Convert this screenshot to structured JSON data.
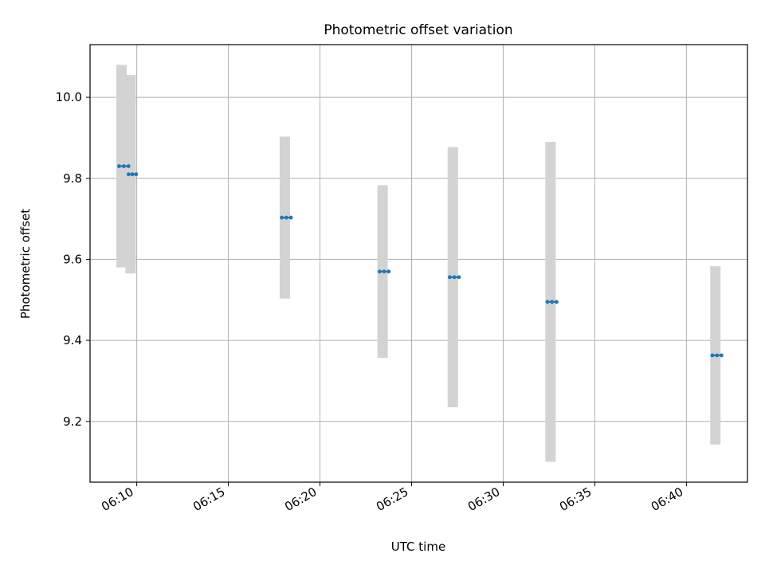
{
  "chart_data": {
    "type": "scatter",
    "title": "Photometric offset variation",
    "xlabel": "UTC time",
    "ylabel": "Photometric offset",
    "x_ticks": [
      "06:10",
      "06:15",
      "06:20",
      "06:25",
      "06:30",
      "06:35",
      "06:40"
    ],
    "y_ticks": [
      "9.2",
      "9.4",
      "9.6",
      "9.8",
      "10.0"
    ],
    "xlim": [
      "06:07:27",
      "06:43:20"
    ],
    "ylim": [
      9.05,
      10.13
    ],
    "grid": true,
    "colors": {
      "marker": "#1f77b4",
      "errorbar": "#d3d3d3",
      "grid": "#b0b0b0"
    },
    "series": [
      {
        "points": [
          {
            "time": "06:09:10",
            "span": [
              "06:09:02",
              "06:09:33"
            ],
            "y": 9.83,
            "err": 0.25
          },
          {
            "time": "06:09:40",
            "span": [
              "06:09:33",
              "06:09:58"
            ],
            "y": 9.81,
            "err": 0.245
          },
          {
            "time": "06:18:05",
            "span": [
              "06:17:55",
              "06:18:25"
            ],
            "y": 9.703,
            "err": 0.2
          },
          {
            "time": "06:23:25",
            "span": [
              "06:23:15",
              "06:23:45"
            ],
            "y": 9.57,
            "err": 0.213
          },
          {
            "time": "06:27:15",
            "span": [
              "06:27:05",
              "06:27:35"
            ],
            "y": 9.556,
            "err": 0.321
          },
          {
            "time": "06:32:35",
            "span": [
              "06:32:25",
              "06:32:55"
            ],
            "y": 9.495,
            "err": 0.395
          },
          {
            "time": "06:41:35",
            "span": [
              "06:41:25",
              "06:41:55"
            ],
            "y": 9.363,
            "err": 0.22
          }
        ]
      }
    ]
  }
}
